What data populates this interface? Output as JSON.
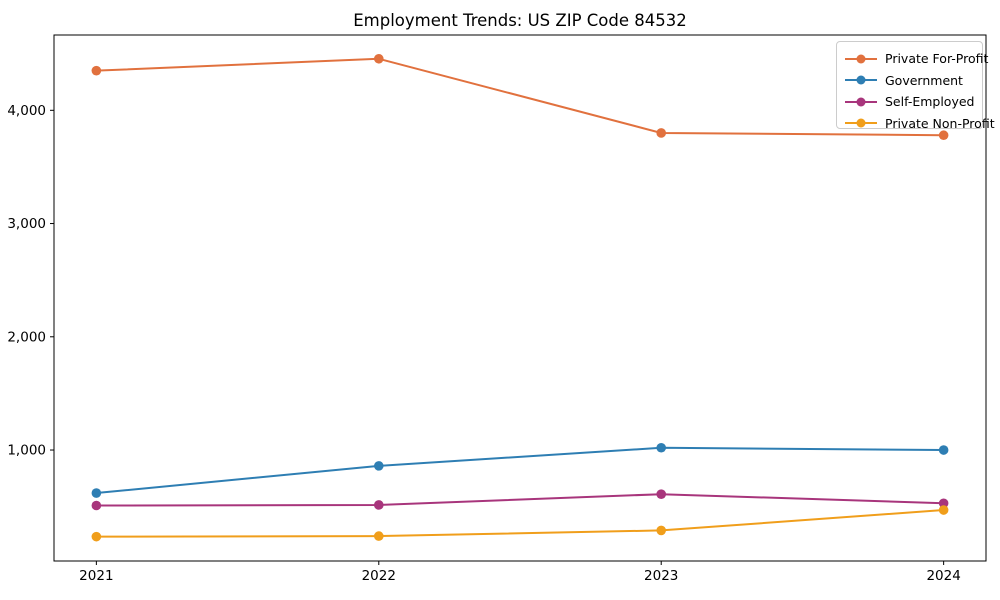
{
  "chart_data": {
    "type": "line",
    "title": "Employment Trends: US ZIP Code 84532",
    "categories": [
      "2021",
      "2022",
      "2023",
      "2024"
    ],
    "series": [
      {
        "name": "Private For-Profit",
        "color": "#e1713e",
        "values": [
          4350,
          4455,
          3800,
          3780
        ]
      },
      {
        "name": "Government",
        "color": "#2e7eb3",
        "values": [
          620,
          860,
          1020,
          1000
        ]
      },
      {
        "name": "Self-Employed",
        "color": "#a8357c",
        "values": [
          510,
          515,
          610,
          530
        ]
      },
      {
        "name": "Private Non-Profit",
        "color": "#f09e1b",
        "values": [
          235,
          240,
          290,
          470
        ]
      }
    ],
    "xlabel": "",
    "ylabel": "",
    "ylim": [
      20,
      4665
    ],
    "yticks": [
      1000,
      2000,
      3000,
      4000
    ],
    "ytick_labels": [
      "1,000",
      "2,000",
      "3,000",
      "4,000"
    ],
    "grid": false,
    "legend_position": "upper right",
    "marker": "circle",
    "axis_color": "#000000"
  }
}
